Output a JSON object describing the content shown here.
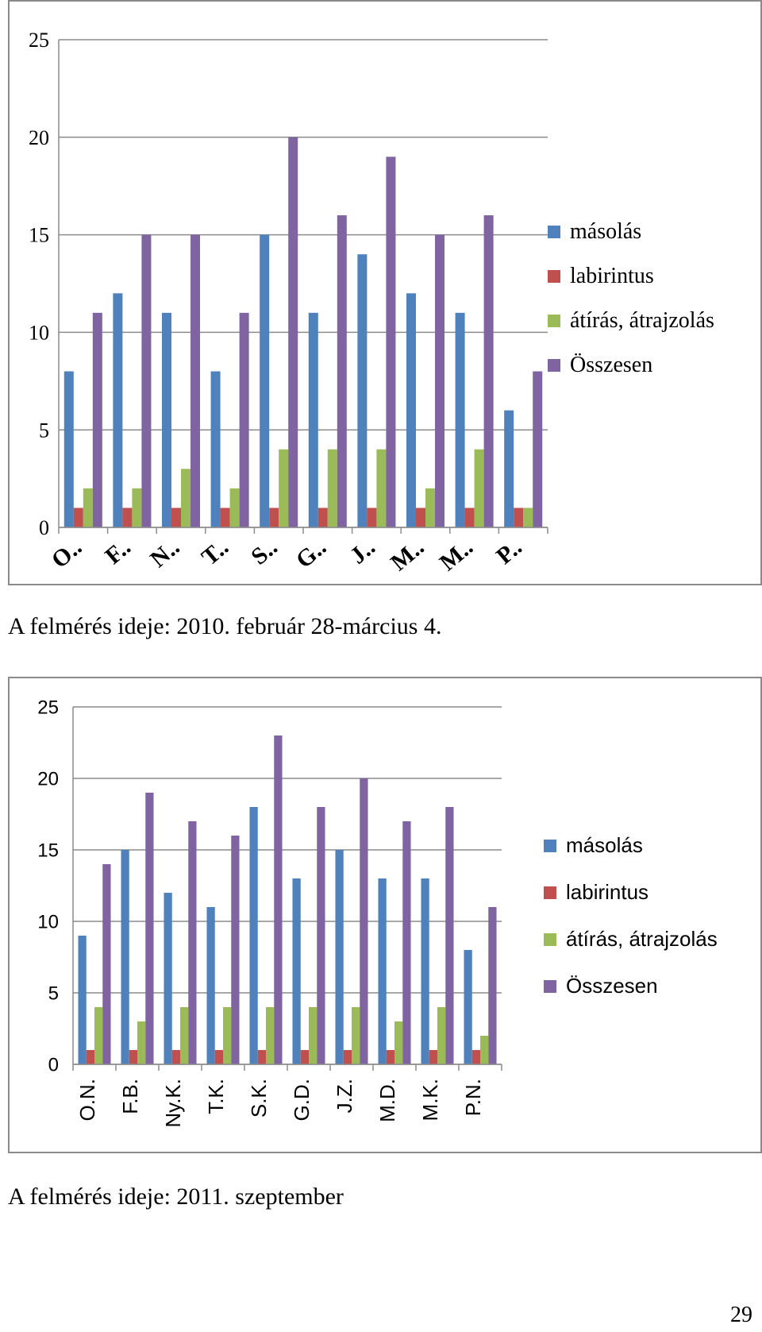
{
  "chart_data": [
    {
      "type": "bar",
      "title": "",
      "xlabel": "",
      "ylabel": "",
      "ylim": [
        0,
        25
      ],
      "yticks": [
        "0",
        "5",
        "10",
        "15",
        "20",
        "25"
      ],
      "grid": true,
      "legend_position": "right",
      "categories": [
        "O..",
        "F..",
        "N..",
        "T..",
        "S..",
        "G..",
        "J..",
        "M..",
        "M..",
        "P.."
      ],
      "series": [
        {
          "name": "másolás",
          "color": "#4f81bd",
          "values": [
            8,
            12,
            11,
            8,
            15,
            11,
            14,
            12,
            11,
            6
          ]
        },
        {
          "name": "labirintus",
          "color": "#c0504d",
          "values": [
            1,
            1,
            1,
            1,
            1,
            1,
            1,
            1,
            1,
            1
          ]
        },
        {
          "name": "átírás, átrajzolás",
          "color": "#9bbb59",
          "values": [
            2,
            2,
            3,
            2,
            4,
            4,
            4,
            2,
            4,
            1
          ]
        },
        {
          "name": "Összesen",
          "color": "#8064a2",
          "values": [
            11,
            15,
            15,
            11,
            20,
            16,
            19,
            15,
            16,
            8
          ]
        }
      ]
    },
    {
      "type": "bar",
      "title": "",
      "xlabel": "",
      "ylabel": "",
      "ylim": [
        0,
        25
      ],
      "yticks": [
        "0",
        "5",
        "10",
        "15",
        "20",
        "25"
      ],
      "grid": true,
      "legend_position": "right",
      "categories": [
        "O.N.",
        "F.B.",
        "Ny.K.",
        "T.K.",
        "S.K.",
        "G.D.",
        "J.Z.",
        "M.D.",
        "M.K.",
        "P.N."
      ],
      "series": [
        {
          "name": "másolás",
          "color": "#4f81bd",
          "values": [
            9,
            15,
            12,
            11,
            18,
            13,
            15,
            13,
            13,
            8
          ]
        },
        {
          "name": "labirintus",
          "color": "#c0504d",
          "values": [
            1,
            1,
            1,
            1,
            1,
            1,
            1,
            1,
            1,
            1
          ]
        },
        {
          "name": "átírás, átrajzolás",
          "color": "#9bbb59",
          "values": [
            4,
            3,
            4,
            4,
            4,
            4,
            4,
            3,
            4,
            2
          ]
        },
        {
          "name": "Összesen",
          "color": "#8064a2",
          "values": [
            14,
            19,
            17,
            16,
            23,
            18,
            20,
            17,
            18,
            11
          ]
        }
      ]
    }
  ],
  "captions": {
    "first": "A felmérés ideje: 2010. február 28-március 4.",
    "second": "A felmérés ideje: 2011. szeptember"
  },
  "page_number": "29"
}
